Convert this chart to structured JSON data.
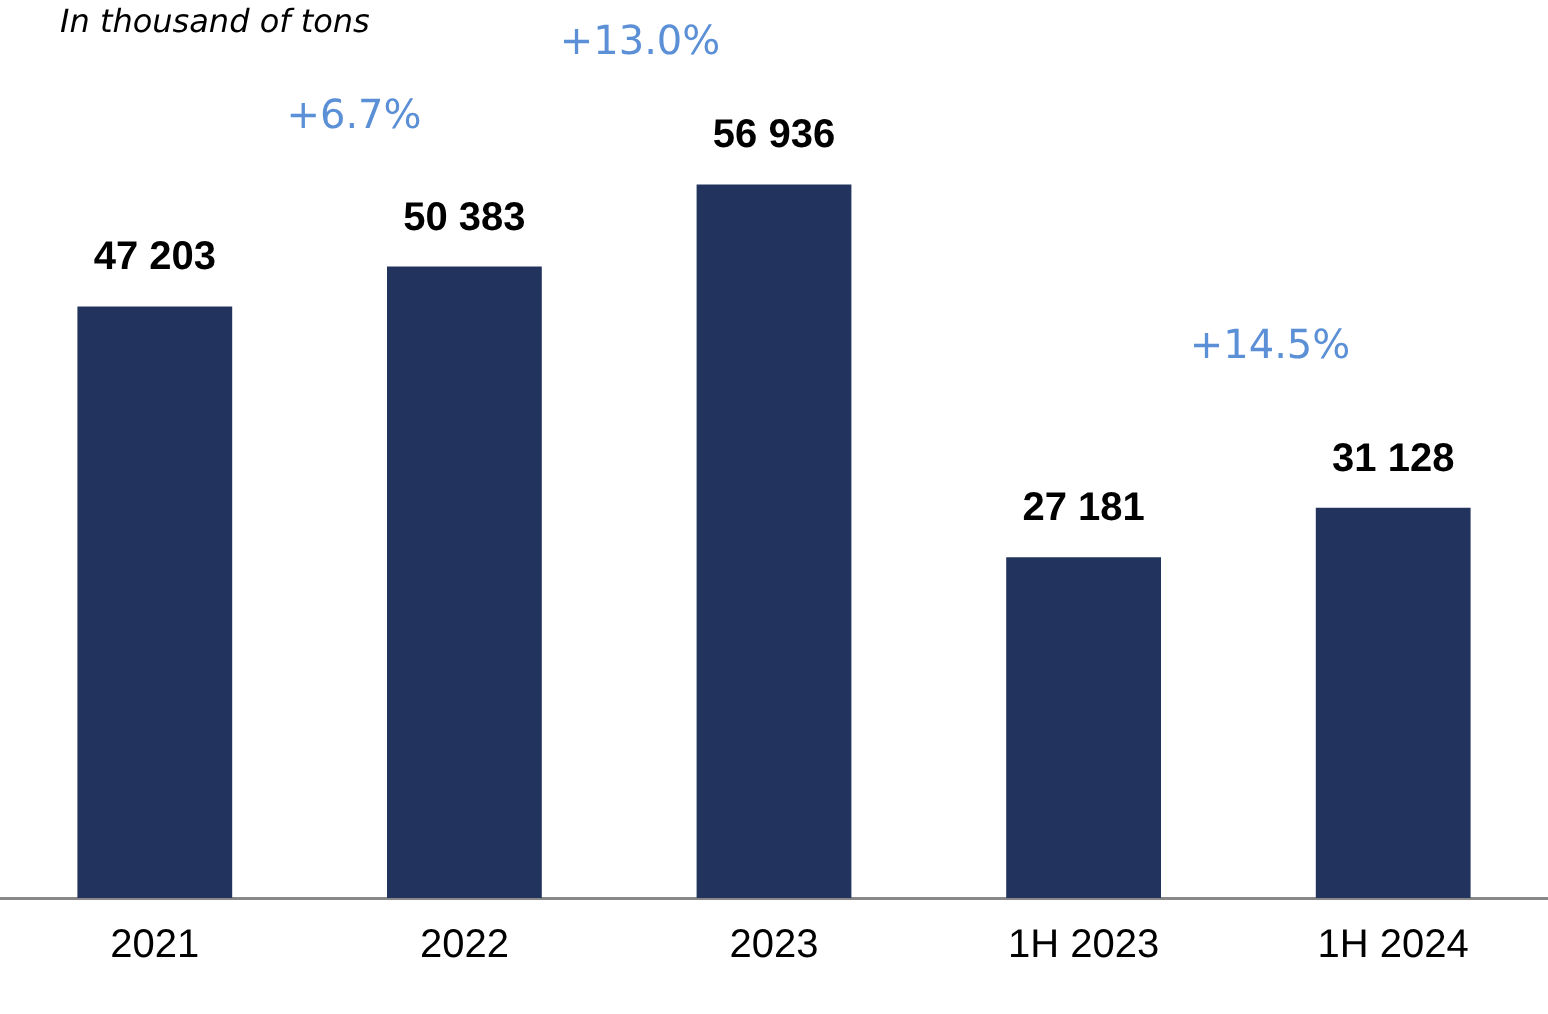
{
  "chart_data": {
    "type": "bar",
    "subtitle": "In thousand of tons",
    "categories": [
      "2021",
      "2022",
      "2023",
      "1H 2023",
      "1H 2024"
    ],
    "values": [
      47203,
      50383,
      56936,
      27181,
      31128
    ],
    "value_labels": [
      "47 203",
      "50 383",
      "56 936",
      "27 181",
      "31 128"
    ],
    "color": "#22345e",
    "annotations": [
      "+6.7%",
      "+13.0%",
      "+14.5%"
    ],
    "grid": false,
    "legend": false,
    "tick_labels": "x"
  }
}
